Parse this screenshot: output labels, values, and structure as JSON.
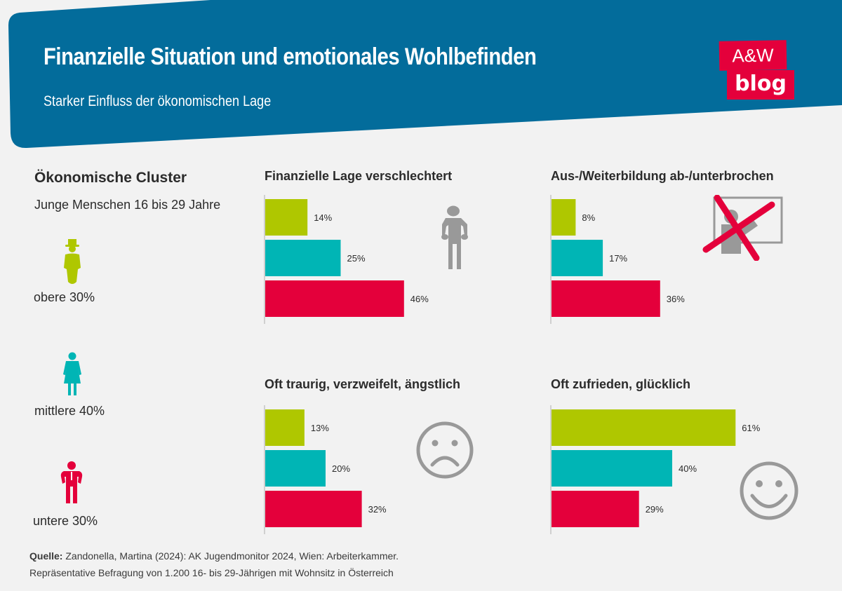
{
  "header": {
    "title": "Finanzielle Situation und emotionales Wohlbefinden",
    "subtitle": "Starker Einfluss der ökonomischen Lage",
    "banner_color": "#036c9b"
  },
  "logo": {
    "line1": "A&W",
    "line2": "blog",
    "color": "#e4003b"
  },
  "clusters": {
    "heading": "Ökonomische Cluster",
    "subheading": "Junge Menschen 16 bis 29 Jahre",
    "items": [
      {
        "label": "obere 30%",
        "color": "#afc700",
        "icon": "man-with-top-hat-icon"
      },
      {
        "label": "mittlere 40%",
        "color": "#00b5b5",
        "icon": "woman-icon"
      },
      {
        "label": "untere 30%",
        "color": "#e4003b",
        "icon": "man-with-tie-icon"
      }
    ]
  },
  "chart_data": [
    {
      "type": "bar",
      "orientation": "horizontal",
      "title": "Finanzielle Lage verschlechtert",
      "categories": [
        "obere 30%",
        "mittlere 40%",
        "untere 30%"
      ],
      "values": [
        14,
        25,
        46
      ],
      "labels": [
        "14%",
        "25%",
        "46%"
      ],
      "colors": [
        "#afc700",
        "#00b5b5",
        "#e4003b"
      ],
      "icon": "empty-pockets-person-icon",
      "xlim": [
        0,
        100
      ],
      "grid": false
    },
    {
      "type": "bar",
      "orientation": "horizontal",
      "title": "Aus-/Weiterbildung ab-/unterbrochen",
      "categories": [
        "obere 30%",
        "mittlere 40%",
        "untere 30%"
      ],
      "values": [
        8,
        17,
        36
      ],
      "labels": [
        "8%",
        "17%",
        "36%"
      ],
      "colors": [
        "#afc700",
        "#00b5b5",
        "#e4003b"
      ],
      "icon": "crossed-out-teacher-icon",
      "xlim": [
        0,
        100
      ],
      "grid": false
    },
    {
      "type": "bar",
      "orientation": "horizontal",
      "title": "Oft traurig, verzweifelt, ängstlich",
      "categories": [
        "obere 30%",
        "mittlere 40%",
        "untere 30%"
      ],
      "values": [
        13,
        20,
        32
      ],
      "labels": [
        "13%",
        "20%",
        "32%"
      ],
      "colors": [
        "#afc700",
        "#00b5b5",
        "#e4003b"
      ],
      "icon": "sad-face-icon",
      "xlim": [
        0,
        100
      ],
      "grid": false
    },
    {
      "type": "bar",
      "orientation": "horizontal",
      "title": "Oft zufrieden, glücklich",
      "categories": [
        "obere 30%",
        "mittlere 40%",
        "untere 30%"
      ],
      "values": [
        61,
        40,
        29
      ],
      "labels": [
        "61%",
        "40%",
        "29%"
      ],
      "colors": [
        "#afc700",
        "#00b5b5",
        "#e4003b"
      ],
      "icon": "happy-face-icon",
      "xlim": [
        0,
        100
      ],
      "grid": false
    }
  ],
  "source": {
    "label": "Quelle:",
    "line1": " Zandonella, Martina (2024): AK Jugendmonitor 2024, Wien: Arbeiterkammer.",
    "line2": "Repräsentative Befragung von 1.200 16- bis 29-Jährigen mit Wohnsitz in Österreich"
  }
}
